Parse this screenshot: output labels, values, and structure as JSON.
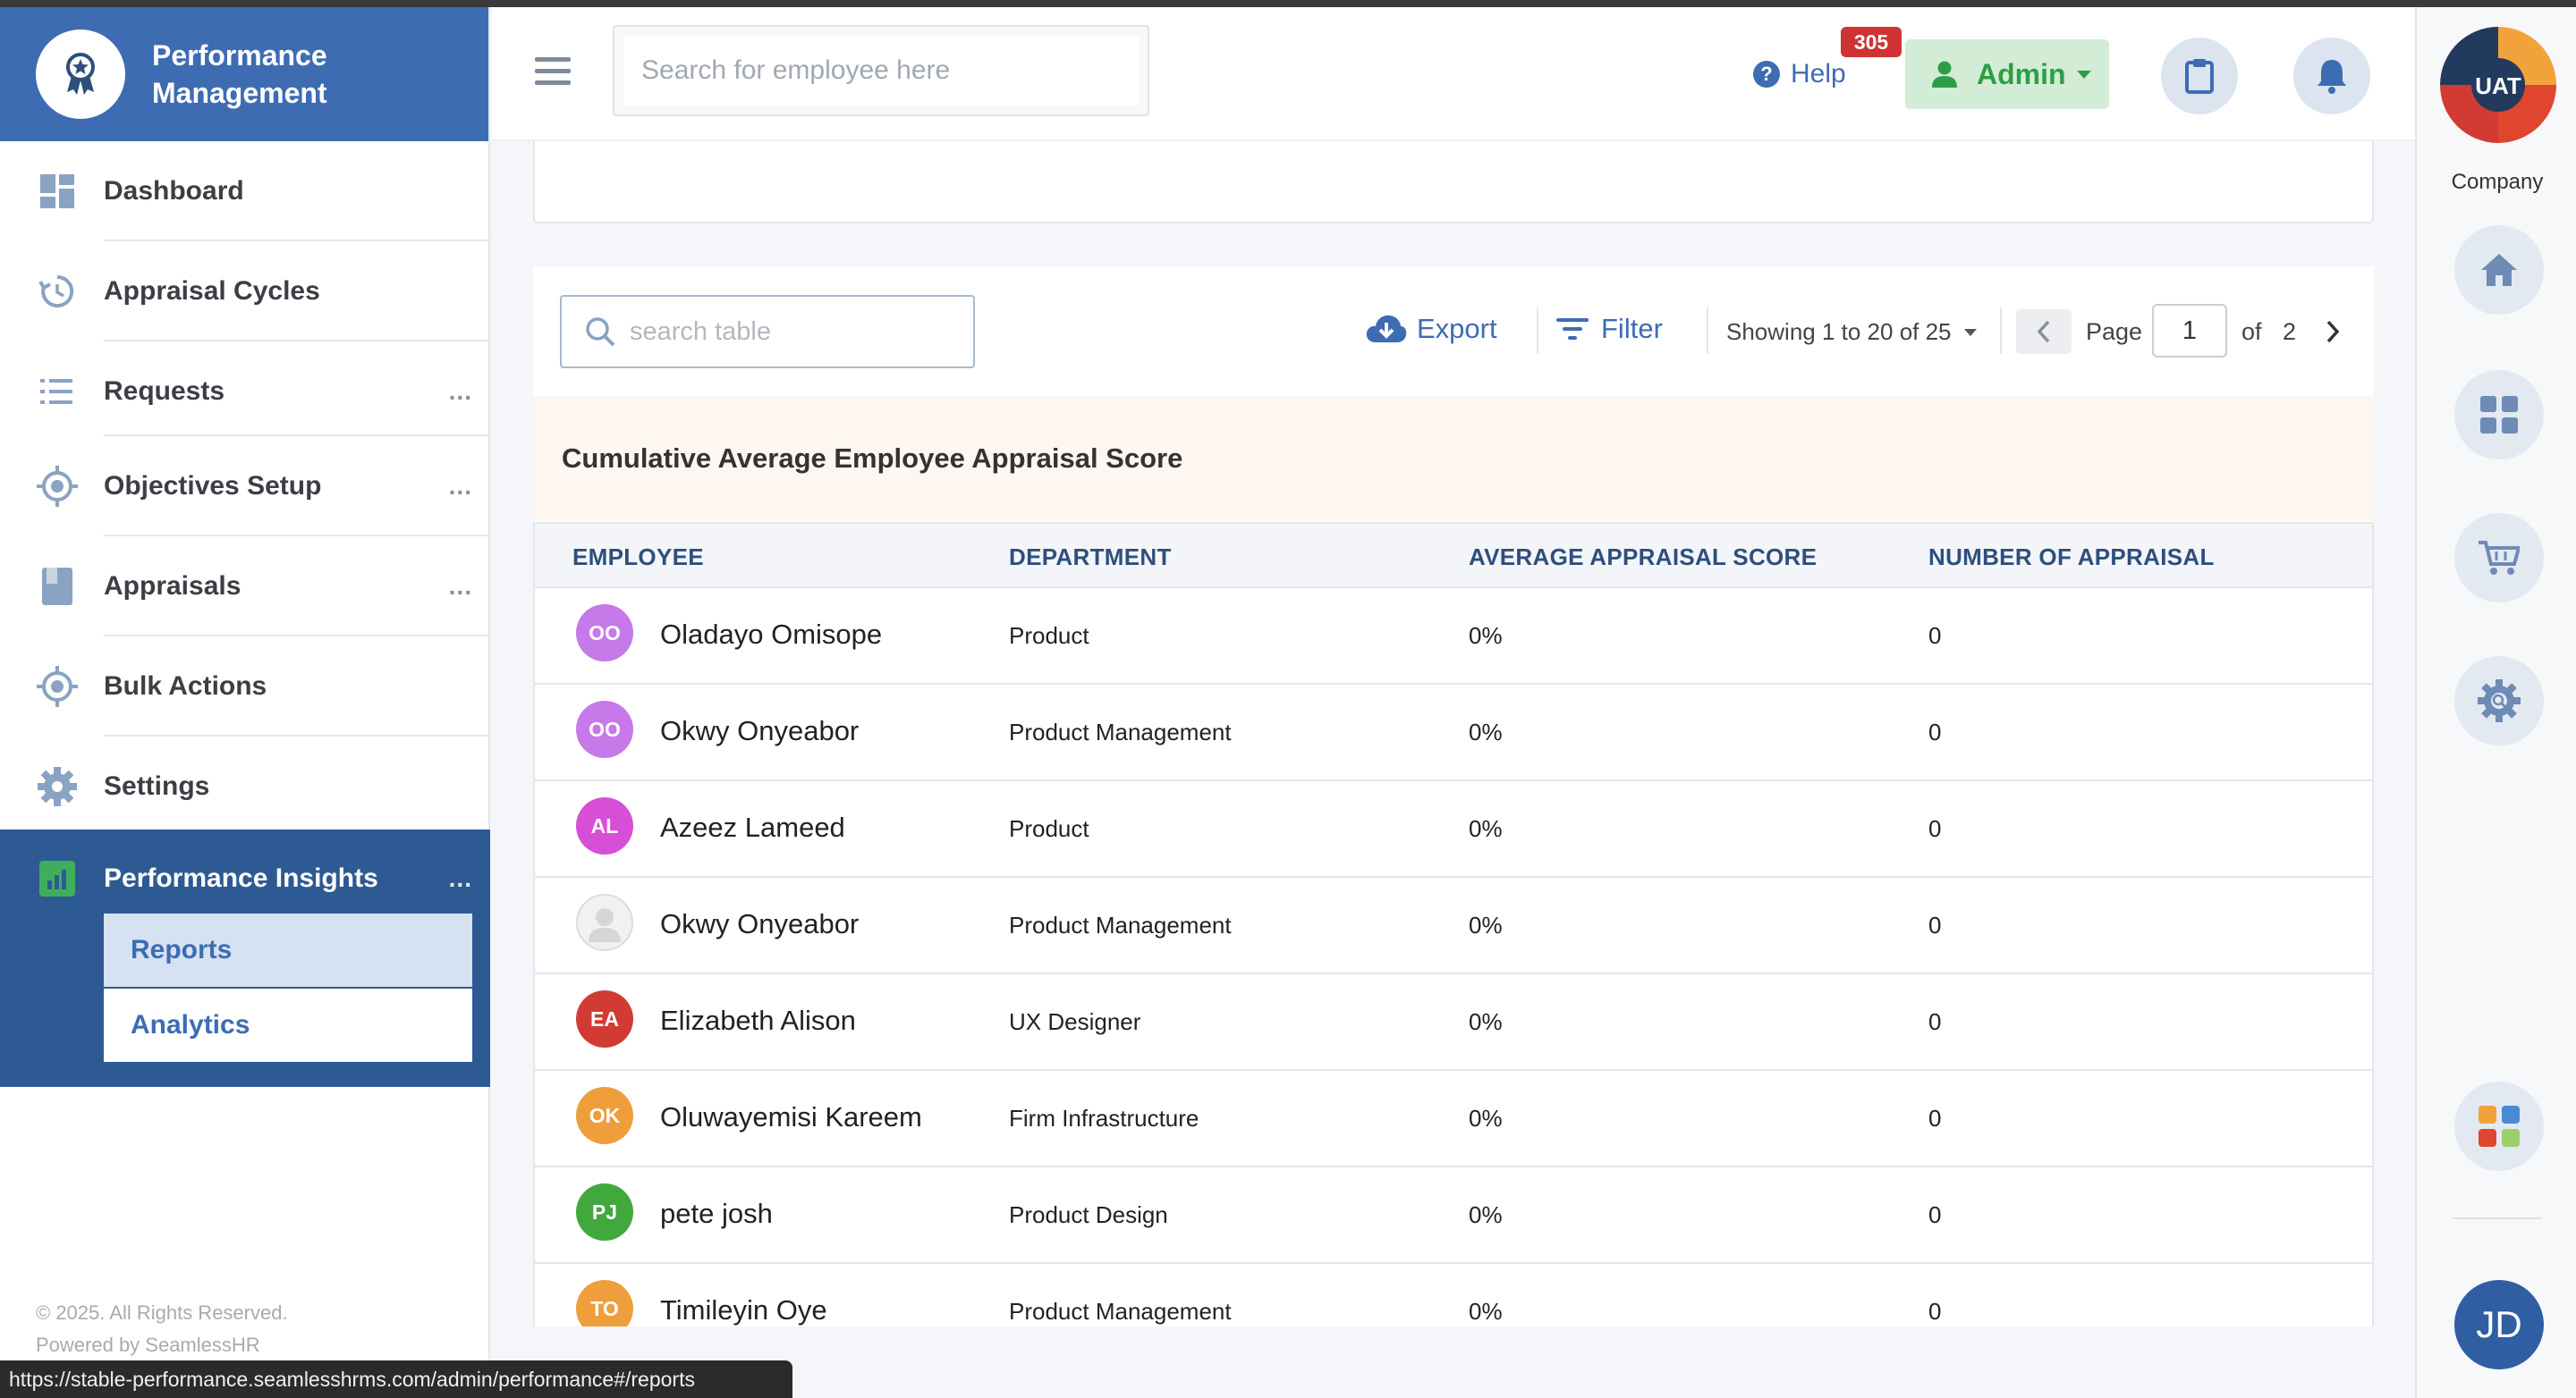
{
  "status_url": "https://stable-performance.seamlesshrms.com/admin/performance#/reports",
  "brand": {
    "line1": "Performance",
    "line2": "Management"
  },
  "sidebar": {
    "items": [
      {
        "label": "Dashboard",
        "icon": "dashboard-icon",
        "dots": ""
      },
      {
        "label": "Appraisal Cycles",
        "icon": "cycle-icon",
        "dots": ""
      },
      {
        "label": "Requests",
        "icon": "list-icon",
        "dots": "..."
      },
      {
        "label": "Objectives Setup",
        "icon": "target-icon",
        "dots": "..."
      },
      {
        "label": "Appraisals",
        "icon": "book-icon",
        "dots": "..."
      },
      {
        "label": "Bulk Actions",
        "icon": "target-icon",
        "dots": ""
      },
      {
        "label": "Settings",
        "icon": "gear-icon",
        "dots": ""
      }
    ],
    "insights": {
      "label": "Performance Insights",
      "dots": "...",
      "sub_items": [
        {
          "label": "Reports",
          "active": true
        },
        {
          "label": "Analytics",
          "active": false
        }
      ]
    },
    "footer": {
      "copyright": "© 2025. All Rights Reserved.",
      "powered": "Powered by SeamlessHR"
    }
  },
  "header": {
    "search_placeholder": "Search for employee here",
    "help_label": "Help",
    "admin_label": "Admin",
    "notification_count": "305"
  },
  "rail": {
    "logo_text": "UAT",
    "company_label": "Company",
    "user_initials": "JD"
  },
  "toolbar": {
    "search_placeholder": "search table",
    "export_label": "Export",
    "filter_label": "Filter",
    "showing_label": "Showing 1 to 20 of 25",
    "page_label": "Page",
    "page_value": "1",
    "of_label": "of",
    "total_pages": "2"
  },
  "report_title": "Cumulative Average Employee Appraisal Score",
  "table": {
    "columns": [
      "EMPLOYEE",
      "DEPARTMENT",
      "AVERAGE APPRAISAL SCORE",
      "NUMBER OF APPRAISAL"
    ],
    "rows": [
      {
        "initials": "OO",
        "color": "#c679e8",
        "name": "Oladayo Omisope",
        "department": "Product",
        "score": "0%",
        "count": "0"
      },
      {
        "initials": "OO",
        "color": "#c679e8",
        "name": "Okwy Onyeabor",
        "department": "Product Management",
        "score": "0%",
        "count": "0"
      },
      {
        "initials": "AL",
        "color": "#d64fd6",
        "name": "Azeez Lameed",
        "department": "Product",
        "score": "0%",
        "count": "0"
      },
      {
        "initials": "",
        "color": "#f1f1f1",
        "name": "Okwy Onyeabor",
        "department": "Product Management",
        "score": "0%",
        "count": "0"
      },
      {
        "initials": "EA",
        "color": "#d23b34",
        "name": "Elizabeth Alison",
        "department": "UX Designer",
        "score": "0%",
        "count": "0"
      },
      {
        "initials": "OK",
        "color": "#ee9f3b",
        "name": "Oluwayemisi Kareem",
        "department": "Firm Infrastructure",
        "score": "0%",
        "count": "0"
      },
      {
        "initials": "PJ",
        "color": "#41a83e",
        "name": "pete josh",
        "department": "Product Design",
        "score": "0%",
        "count": "0"
      },
      {
        "initials": "TO",
        "color": "#ee9f3b",
        "name": "Timileyin Oye",
        "department": "Product Management",
        "score": "0%",
        "count": "0"
      }
    ]
  }
}
